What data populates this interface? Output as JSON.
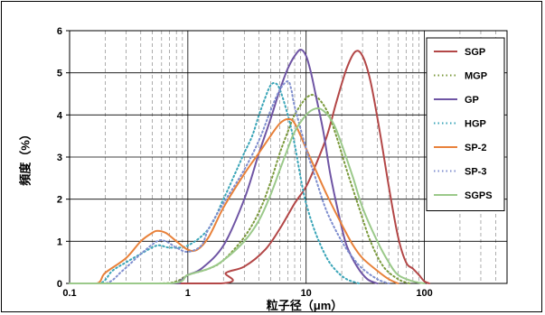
{
  "chart_data": {
    "type": "line",
    "title": "",
    "xlabel": "粒子径（μm）",
    "ylabel": "頻度（%）",
    "xscale": "log",
    "xlim": [
      0.1,
      500
    ],
    "ylim": [
      0,
      6
    ],
    "x_ticks": [
      0.1,
      1,
      10,
      100
    ],
    "x_tick_labels": [
      "0.1",
      "1",
      "10",
      "100"
    ],
    "y_ticks": [
      0,
      1,
      2,
      3,
      4,
      5,
      6
    ],
    "y_tick_labels": [
      "0",
      "1",
      "2",
      "3",
      "4",
      "5",
      "6"
    ],
    "grid": true,
    "legend_position": "right",
    "series": [
      {
        "name": "SGP",
        "color": "#b34747",
        "dash": "solid",
        "points": [
          [
            0.1,
            0
          ],
          [
            1.9,
            0
          ],
          [
            2.1,
            0.25
          ],
          [
            3,
            0.4
          ],
          [
            4.5,
            0.8
          ],
          [
            6,
            1.3
          ],
          [
            8,
            1.9
          ],
          [
            10,
            2.3
          ],
          [
            12,
            2.8
          ],
          [
            15,
            3.5
          ],
          [
            18,
            4.3
          ],
          [
            22,
            5.1
          ],
          [
            26,
            5.5
          ],
          [
            30,
            5.4
          ],
          [
            35,
            4.8
          ],
          [
            42,
            3.6
          ],
          [
            50,
            2.3
          ],
          [
            60,
            1.1
          ],
          [
            70,
            0.5
          ],
          [
            80,
            0.35
          ],
          [
            90,
            0.2
          ],
          [
            100,
            0.05
          ],
          [
            110,
            0
          ]
        ]
      },
      {
        "name": "MGP",
        "color": "#7b9a3c",
        "dash": "dot",
        "points": [
          [
            0.1,
            0
          ],
          [
            0.55,
            0
          ],
          [
            0.8,
            0.05
          ],
          [
            1,
            0.2
          ],
          [
            1.5,
            0.35
          ],
          [
            2,
            0.55
          ],
          [
            3,
            1.1
          ],
          [
            4,
            1.7
          ],
          [
            5,
            2.4
          ],
          [
            6,
            3.1
          ],
          [
            7,
            3.6
          ],
          [
            8,
            4.0
          ],
          [
            10,
            4.4
          ],
          [
            12,
            4.45
          ],
          [
            15,
            4.1
          ],
          [
            18,
            3.5
          ],
          [
            22,
            2.7
          ],
          [
            28,
            1.8
          ],
          [
            35,
            1.0
          ],
          [
            45,
            0.4
          ],
          [
            60,
            0.1
          ],
          [
            75,
            0
          ]
        ]
      },
      {
        "name": "GP",
        "color": "#6f55a4",
        "dash": "solid",
        "points": [
          [
            0.1,
            0
          ],
          [
            0.7,
            0
          ],
          [
            0.85,
            0.05
          ],
          [
            1,
            0.2
          ],
          [
            1.3,
            0.35
          ],
          [
            2,
            0.9
          ],
          [
            3,
            2.0
          ],
          [
            4,
            3.1
          ],
          [
            5,
            3.9
          ],
          [
            6,
            4.6
          ],
          [
            7,
            5.1
          ],
          [
            8,
            5.4
          ],
          [
            9,
            5.55
          ],
          [
            10,
            5.4
          ],
          [
            11,
            5.0
          ],
          [
            12,
            4.5
          ],
          [
            14,
            3.6
          ],
          [
            16,
            2.6
          ],
          [
            19,
            1.6
          ],
          [
            22,
            0.9
          ],
          [
            27,
            0.4
          ],
          [
            33,
            0.1
          ],
          [
            40,
            0
          ]
        ]
      },
      {
        "name": "HGP",
        "color": "#3aa5b8",
        "dash": "dot",
        "points": [
          [
            0.1,
            0
          ],
          [
            0.18,
            0
          ],
          [
            0.23,
            0.3
          ],
          [
            0.3,
            0.5
          ],
          [
            0.4,
            0.7
          ],
          [
            0.55,
            0.9
          ],
          [
            0.7,
            0.85
          ],
          [
            1,
            0.9
          ],
          [
            1.5,
            1.3
          ],
          [
            2,
            2.0
          ],
          [
            2.5,
            2.6
          ],
          [
            3,
            3.1
          ],
          [
            3.5,
            3.5
          ],
          [
            4,
            4.0
          ],
          [
            4.5,
            4.4
          ],
          [
            5,
            4.7
          ],
          [
            5.5,
            4.75
          ],
          [
            6,
            4.6
          ],
          [
            7,
            4.0
          ],
          [
            8,
            3.3
          ],
          [
            9,
            2.5
          ],
          [
            10,
            1.9
          ],
          [
            12,
            1.2
          ],
          [
            15,
            0.6
          ],
          [
            18,
            0.3
          ],
          [
            22,
            0.1
          ],
          [
            28,
            0
          ]
        ]
      },
      {
        "name": "SP-2",
        "color": "#e8813a",
        "dash": "solid",
        "points": [
          [
            0.1,
            0
          ],
          [
            0.17,
            0
          ],
          [
            0.2,
            0.25
          ],
          [
            0.3,
            0.6
          ],
          [
            0.4,
            1.0
          ],
          [
            0.5,
            1.2
          ],
          [
            0.55,
            1.25
          ],
          [
            0.65,
            1.2
          ],
          [
            0.8,
            1.0
          ],
          [
            1,
            0.8
          ],
          [
            1.2,
            0.8
          ],
          [
            1.5,
            1.1
          ],
          [
            2,
            1.8
          ],
          [
            3,
            2.6
          ],
          [
            4,
            3.1
          ],
          [
            5,
            3.5
          ],
          [
            6,
            3.8
          ],
          [
            7,
            3.9
          ],
          [
            8,
            3.8
          ],
          [
            10,
            3.2
          ],
          [
            12,
            2.7
          ],
          [
            15,
            2.1
          ],
          [
            20,
            1.4
          ],
          [
            25,
            0.9
          ],
          [
            30,
            0.6
          ],
          [
            40,
            0.3
          ],
          [
            50,
            0.1
          ],
          [
            60,
            0
          ]
        ]
      },
      {
        "name": "SP-3",
        "color": "#7f8ecf",
        "dash": "dot",
        "points": [
          [
            0.1,
            0
          ],
          [
            0.2,
            0
          ],
          [
            0.28,
            0.3
          ],
          [
            0.4,
            0.7
          ],
          [
            0.55,
            1.0
          ],
          [
            0.65,
            1.0
          ],
          [
            0.8,
            0.85
          ],
          [
            1,
            0.75
          ],
          [
            1.3,
            0.9
          ],
          [
            1.5,
            1.3
          ],
          [
            2,
            1.9
          ],
          [
            3,
            2.7
          ],
          [
            4,
            3.4
          ],
          [
            5,
            4.1
          ],
          [
            6,
            4.6
          ],
          [
            7,
            4.8
          ],
          [
            7.5,
            4.6
          ],
          [
            8,
            4.2
          ],
          [
            10,
            3.2
          ],
          [
            12,
            2.5
          ],
          [
            15,
            1.7
          ],
          [
            20,
            1.0
          ],
          [
            25,
            0.6
          ],
          [
            30,
            0.35
          ],
          [
            40,
            0.1
          ],
          [
            50,
            0
          ]
        ]
      },
      {
        "name": "SGPS",
        "color": "#9bc98a",
        "dash": "solid",
        "points": [
          [
            0.1,
            0
          ],
          [
            0.7,
            0
          ],
          [
            1,
            0.2
          ],
          [
            1.5,
            0.35
          ],
          [
            2,
            0.55
          ],
          [
            3,
            1.0
          ],
          [
            4,
            1.5
          ],
          [
            5,
            2.1
          ],
          [
            6,
            2.7
          ],
          [
            7,
            3.2
          ],
          [
            8,
            3.6
          ],
          [
            10,
            4.0
          ],
          [
            12,
            4.15
          ],
          [
            14,
            4.1
          ],
          [
            17,
            3.8
          ],
          [
            20,
            3.3
          ],
          [
            25,
            2.5
          ],
          [
            30,
            1.8
          ],
          [
            40,
            1.0
          ],
          [
            50,
            0.5
          ],
          [
            60,
            0.2
          ],
          [
            80,
            0.05
          ],
          [
            100,
            0
          ]
        ]
      }
    ]
  }
}
